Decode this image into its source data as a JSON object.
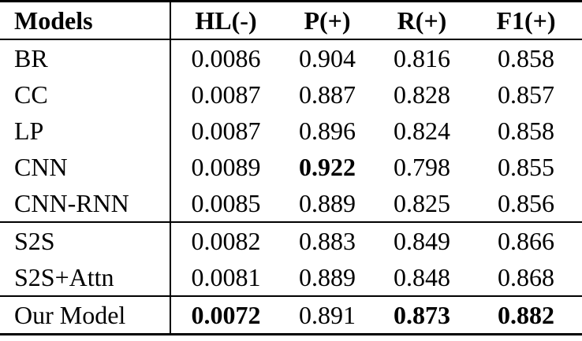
{
  "colors": {
    "background": "#ffffff",
    "text": "#000000",
    "rule": "#000000"
  },
  "table": {
    "columns": [
      "Models",
      "HL(-)",
      "P(+)",
      "R(+)",
      "F1(+)"
    ],
    "rows": [
      {
        "model": "BR",
        "model_bold": false,
        "rule_after": false,
        "values": [
          {
            "text": "0.0086",
            "bold": false
          },
          {
            "text": "0.904",
            "bold": false
          },
          {
            "text": "0.816",
            "bold": false
          },
          {
            "text": "0.858",
            "bold": false
          }
        ]
      },
      {
        "model": "CC",
        "model_bold": false,
        "rule_after": false,
        "values": [
          {
            "text": "0.0087",
            "bold": false
          },
          {
            "text": "0.887",
            "bold": false
          },
          {
            "text": "0.828",
            "bold": false
          },
          {
            "text": "0.857",
            "bold": false
          }
        ]
      },
      {
        "model": "LP",
        "model_bold": false,
        "rule_after": false,
        "values": [
          {
            "text": "0.0087",
            "bold": false
          },
          {
            "text": "0.896",
            "bold": false
          },
          {
            "text": "0.824",
            "bold": false
          },
          {
            "text": "0.858",
            "bold": false
          }
        ]
      },
      {
        "model": "CNN",
        "model_bold": false,
        "rule_after": false,
        "values": [
          {
            "text": "0.0089",
            "bold": false
          },
          {
            "text": "0.922",
            "bold": true
          },
          {
            "text": "0.798",
            "bold": false
          },
          {
            "text": "0.855",
            "bold": false
          }
        ]
      },
      {
        "model": "CNN-RNN",
        "model_bold": false,
        "rule_after": true,
        "values": [
          {
            "text": "0.0085",
            "bold": false
          },
          {
            "text": "0.889",
            "bold": false
          },
          {
            "text": "0.825",
            "bold": false
          },
          {
            "text": "0.856",
            "bold": false
          }
        ]
      },
      {
        "model": "S2S",
        "model_bold": false,
        "rule_after": false,
        "values": [
          {
            "text": "0.0082",
            "bold": false
          },
          {
            "text": "0.883",
            "bold": false
          },
          {
            "text": "0.849",
            "bold": false
          },
          {
            "text": "0.866",
            "bold": false
          }
        ]
      },
      {
        "model": "S2S+Attn",
        "model_bold": false,
        "rule_after": true,
        "values": [
          {
            "text": "0.0081",
            "bold": false
          },
          {
            "text": "0.889",
            "bold": false
          },
          {
            "text": "0.848",
            "bold": false
          },
          {
            "text": "0.868",
            "bold": false
          }
        ]
      },
      {
        "model": "Our Model",
        "model_bold": false,
        "rule_after": false,
        "values": [
          {
            "text": "0.0072",
            "bold": true
          },
          {
            "text": "0.891",
            "bold": false
          },
          {
            "text": "0.873",
            "bold": true
          },
          {
            "text": "0.882",
            "bold": true
          }
        ]
      }
    ]
  }
}
